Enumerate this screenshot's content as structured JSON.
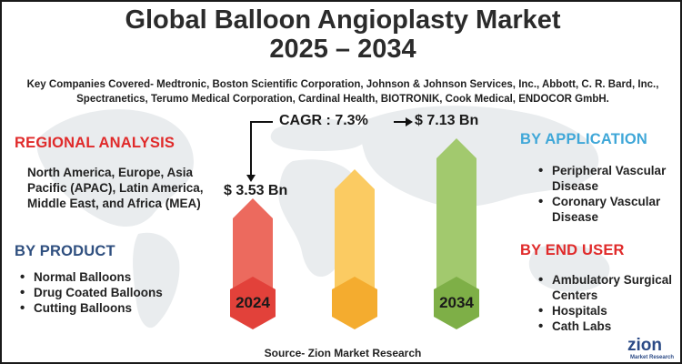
{
  "title_line1": "Global Balloon Angioplasty Market",
  "title_line2": "2025 – 2034",
  "companies": "Key Companies Covered- Medtronic, Boston Scientific Corporation, Johnson & Johnson Services, Inc., Abbott, C. R. Bard, Inc., Spectranetics, Terumo Medical Corporation, Cardinal Health, BIOTRONIK, Cook Medical, ENDOCOR GmbH.",
  "regional": {
    "heading": "REGIONAL ANALYSIS",
    "text": "North America, Europe, Asia Pacific (APAC), Latin America, Middle East, and Africa (MEA)"
  },
  "product": {
    "heading": "BY PRODUCT",
    "items": [
      "Normal Balloons",
      "Drug Coated Balloons",
      "Cutting Balloons"
    ]
  },
  "application": {
    "heading": "BY APPLICATION",
    "items": [
      "Peripheral Vascular Disease",
      "Coronary Vascular Disease"
    ]
  },
  "end_user": {
    "heading": "BY END USER",
    "items": [
      "Ambulatory Surgical Centers",
      "Hospitals",
      "Cath Labs"
    ]
  },
  "chart": {
    "cagr": "CAGR : 7.3%",
    "start_value": "$ 3.53 Bn",
    "end_value": "$ 7.13 Bn",
    "start_year": "2024",
    "end_year": "2034",
    "colors": {
      "start": "#e24b3e",
      "middle": "#f6b830",
      "end": "#86b64a"
    }
  },
  "source": "Source- Zion Market Research",
  "logo": {
    "name": "zion",
    "tagline": "Market Research"
  }
}
